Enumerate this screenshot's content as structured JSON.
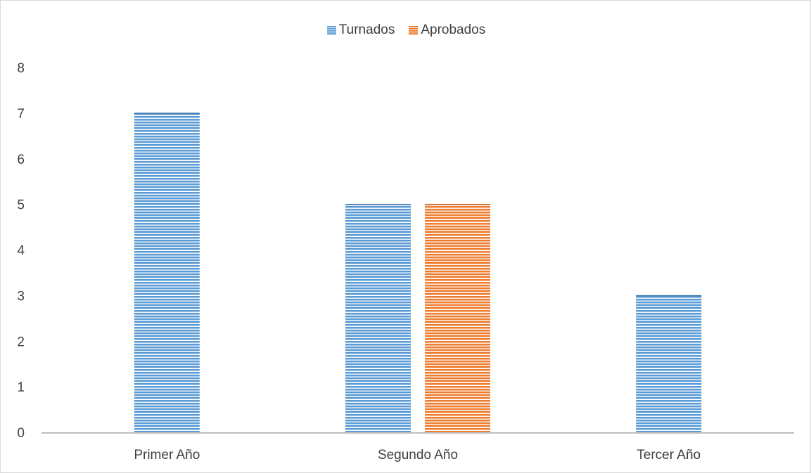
{
  "chart_data": {
    "type": "bar",
    "title": "",
    "xlabel": "",
    "ylabel": "",
    "categories": [
      "Primer Año",
      "Segundo Año",
      "Tercer Año"
    ],
    "series": [
      {
        "name": "Turnados",
        "values": [
          7,
          5,
          3
        ],
        "color": "#5b9bd5"
      },
      {
        "name": "Aprobados",
        "values": [
          0,
          5,
          0
        ],
        "color": "#ed7d31"
      }
    ],
    "ylim": [
      0,
      8
    ],
    "yticks": [
      "0",
      "1",
      "2",
      "3",
      "4",
      "5",
      "6",
      "7",
      "8"
    ],
    "grid": false,
    "legend_position": "top-center",
    "bar_pattern": "horizontal-stripes"
  }
}
